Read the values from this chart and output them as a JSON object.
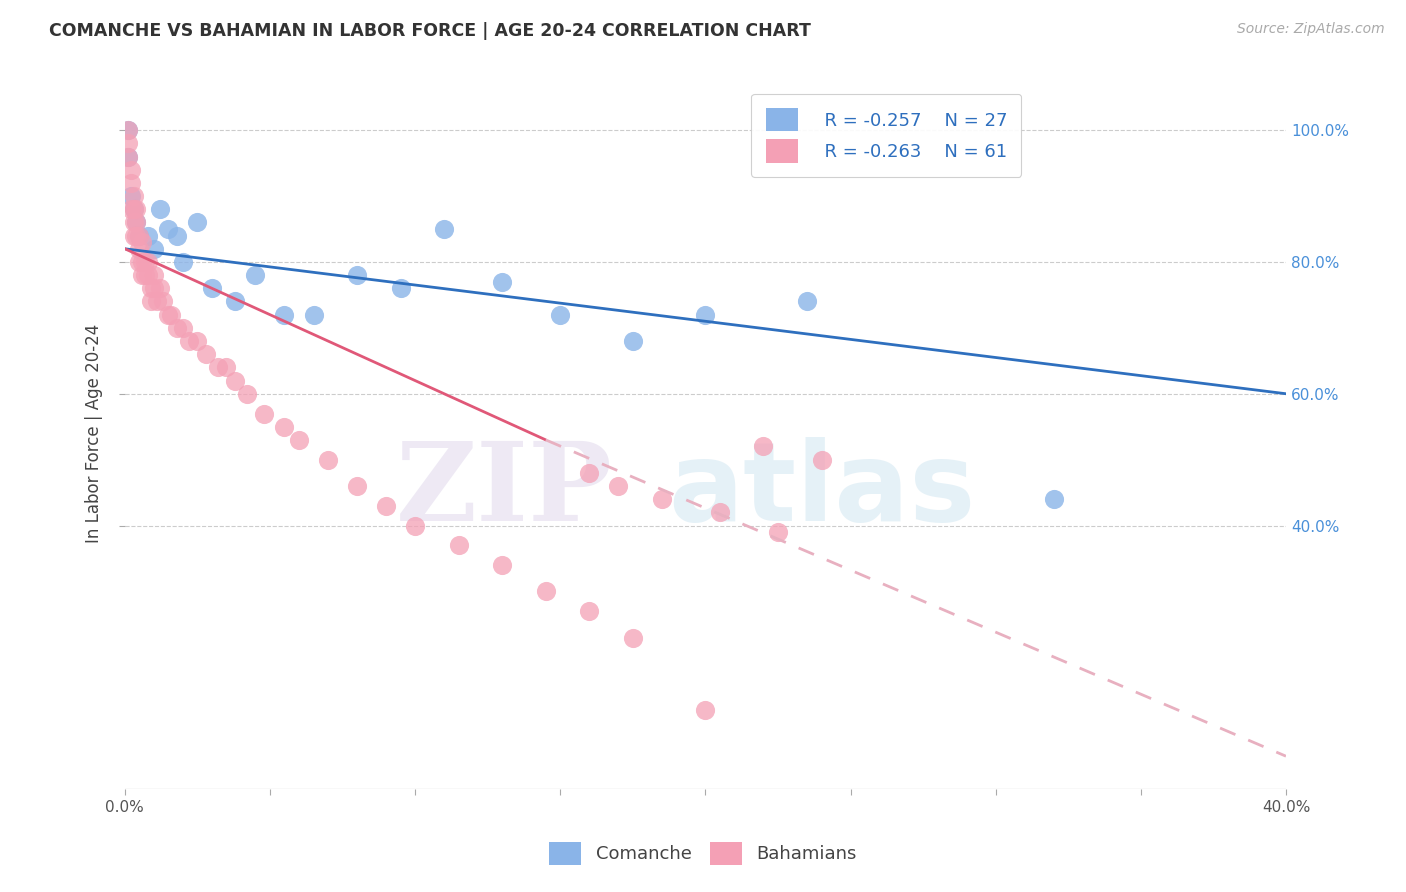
{
  "title": "COMANCHE VS BAHAMIAN IN LABOR FORCE | AGE 20-24 CORRELATION CHART",
  "source": "Source: ZipAtlas.com",
  "ylabel": "In Labor Force | Age 20-24",
  "xlim": [
    0.0,
    0.4
  ],
  "ylim": [
    0.0,
    1.08
  ],
  "comanche_color": "#8ab4e8",
  "bahamian_color": "#f4a0b5",
  "comanche_line_color": "#2e6fbe",
  "bahamian_line_color": "#e05878",
  "dashed_line_color": "#e8b0c0",
  "legend_R_comanche": "R = -0.257",
  "legend_N_comanche": "N = 27",
  "legend_R_bahamian": "R = -0.263",
  "legend_N_bahamian": "N = 61",
  "comanche_line": [
    [
      0.0,
      0.82
    ],
    [
      0.4,
      0.6
    ]
  ],
  "bahamian_line_solid": [
    [
      0.0,
      0.82
    ],
    [
      0.145,
      0.53
    ]
  ],
  "bahamian_line_dashed": [
    [
      0.145,
      0.53
    ],
    [
      0.4,
      0.05
    ]
  ],
  "comanche_x": [
    0.001,
    0.001,
    0.002,
    0.003,
    0.004,
    0.005,
    0.008,
    0.01,
    0.012,
    0.015,
    0.018,
    0.02,
    0.025,
    0.03,
    0.038,
    0.045,
    0.055,
    0.065,
    0.08,
    0.095,
    0.11,
    0.13,
    0.15,
    0.175,
    0.2,
    0.235,
    0.32
  ],
  "comanche_y": [
    0.96,
    1.0,
    0.9,
    0.88,
    0.86,
    0.84,
    0.84,
    0.82,
    0.88,
    0.85,
    0.84,
    0.8,
    0.86,
    0.76,
    0.74,
    0.78,
    0.72,
    0.72,
    0.78,
    0.76,
    0.85,
    0.77,
    0.72,
    0.68,
    0.72,
    0.74,
    0.44
  ],
  "bahamian_x": [
    0.001,
    0.001,
    0.001,
    0.002,
    0.002,
    0.002,
    0.003,
    0.003,
    0.003,
    0.003,
    0.004,
    0.004,
    0.004,
    0.005,
    0.005,
    0.005,
    0.006,
    0.006,
    0.006,
    0.007,
    0.007,
    0.008,
    0.008,
    0.009,
    0.009,
    0.01,
    0.01,
    0.011,
    0.012,
    0.013,
    0.015,
    0.016,
    0.018,
    0.02,
    0.022,
    0.025,
    0.028,
    0.032,
    0.035,
    0.038,
    0.042,
    0.048,
    0.055,
    0.06,
    0.07,
    0.08,
    0.09,
    0.1,
    0.115,
    0.13,
    0.145,
    0.16,
    0.175,
    0.2,
    0.22,
    0.24,
    0.16,
    0.17,
    0.185,
    0.205,
    0.225
  ],
  "bahamian_y": [
    0.98,
    0.96,
    1.0,
    0.94,
    0.92,
    0.88,
    0.9,
    0.88,
    0.86,
    0.84,
    0.88,
    0.86,
    0.84,
    0.84,
    0.82,
    0.8,
    0.83,
    0.8,
    0.78,
    0.8,
    0.78,
    0.8,
    0.78,
    0.76,
    0.74,
    0.78,
    0.76,
    0.74,
    0.76,
    0.74,
    0.72,
    0.72,
    0.7,
    0.7,
    0.68,
    0.68,
    0.66,
    0.64,
    0.64,
    0.62,
    0.6,
    0.57,
    0.55,
    0.53,
    0.5,
    0.46,
    0.43,
    0.4,
    0.37,
    0.34,
    0.3,
    0.27,
    0.23,
    0.12,
    0.52,
    0.5,
    0.48,
    0.46,
    0.44,
    0.42,
    0.39
  ]
}
